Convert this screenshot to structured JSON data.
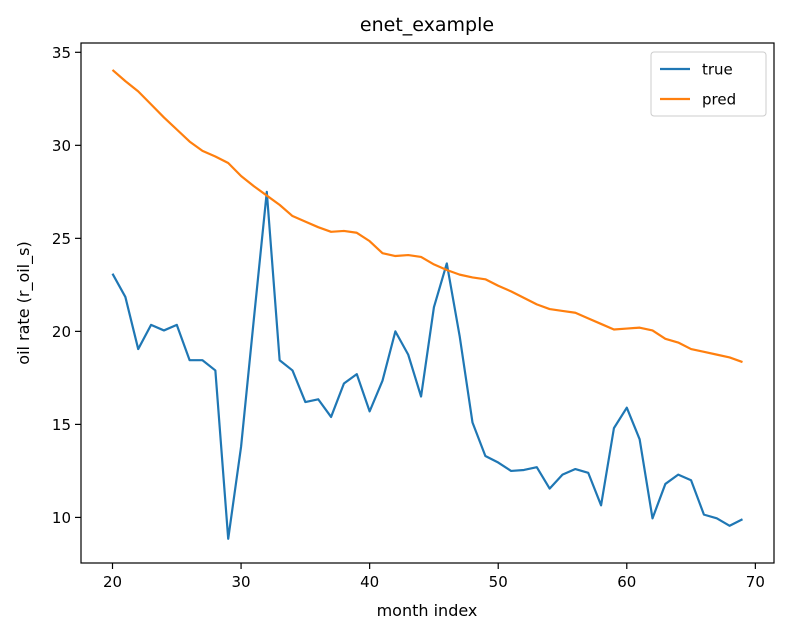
{
  "chart_data": {
    "type": "line",
    "title": "enet_example",
    "xlabel": "month index",
    "ylabel": "oil rate (r_oil_s)",
    "xlim": [
      17.55,
      71.45
    ],
    "ylim": [
      7.55,
      35.5
    ],
    "xticks": [
      20,
      30,
      40,
      50,
      60,
      70
    ],
    "yticks": [
      10,
      15,
      20,
      25,
      30,
      35
    ],
    "grid": false,
    "legend_position": "top-right",
    "x": [
      20,
      21,
      22,
      23,
      24,
      25,
      26,
      27,
      28,
      29,
      30,
      31,
      32,
      33,
      34,
      35,
      36,
      37,
      38,
      39,
      40,
      41,
      42,
      43,
      44,
      45,
      46,
      47,
      48,
      49,
      50,
      51,
      52,
      53,
      54,
      55,
      56,
      57,
      58,
      59,
      60,
      61,
      62,
      63,
      64,
      65,
      66,
      67,
      68,
      69
    ],
    "series": [
      {
        "name": "true",
        "color": "#1f77b4",
        "values": [
          23.1,
          21.85,
          19.05,
          20.35,
          20.05,
          20.35,
          18.45,
          18.45,
          17.9,
          8.85,
          13.8,
          20.7,
          27.5,
          18.45,
          17.9,
          16.2,
          16.35,
          15.4,
          17.2,
          17.7,
          15.7,
          17.35,
          20.0,
          18.75,
          16.5,
          21.3,
          23.65,
          19.75,
          15.1,
          13.3,
          12.95,
          12.5,
          12.55,
          12.7,
          11.55,
          12.3,
          12.6,
          12.4,
          10.65,
          14.8,
          15.9,
          14.2,
          9.95,
          11.8,
          12.3,
          12.0,
          10.15,
          9.95,
          9.55,
          9.9
        ]
      },
      {
        "name": "pred",
        "color": "#ff7f0e",
        "values": [
          34.05,
          33.45,
          32.9,
          32.2,
          31.5,
          30.85,
          30.2,
          29.7,
          29.4,
          29.05,
          28.35,
          27.8,
          27.3,
          26.8,
          26.2,
          25.9,
          25.6,
          25.35,
          25.4,
          25.3,
          24.85,
          24.2,
          24.05,
          24.1,
          24.0,
          23.6,
          23.3,
          23.05,
          22.9,
          22.8,
          22.45,
          22.15,
          21.8,
          21.45,
          21.2,
          21.1,
          21.0,
          20.7,
          20.4,
          20.1,
          20.15,
          20.2,
          20.05,
          19.6,
          19.4,
          19.05,
          18.9,
          18.75,
          18.6,
          18.35
        ]
      }
    ]
  }
}
